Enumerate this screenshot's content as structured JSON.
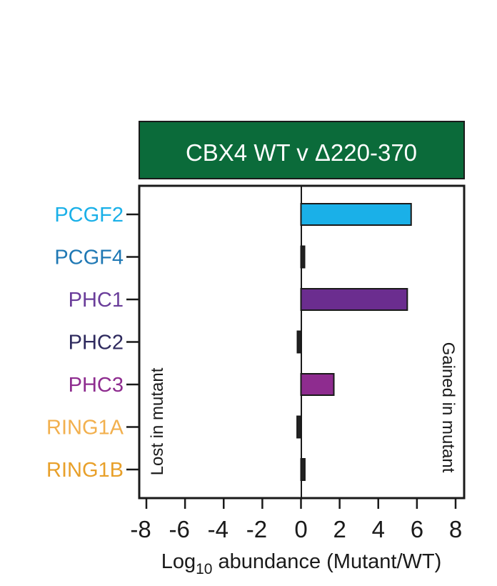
{
  "chart_data": {
    "type": "bar",
    "orientation": "horizontal",
    "title": "CBX4 WT v Δ220-370",
    "categories": [
      "PCGF2",
      "PCGF4",
      "PHC1",
      "PHC2",
      "PHC3",
      "RING1A",
      "RING1B"
    ],
    "category_colors": [
      "#1ab0e8",
      "#1f78b4",
      "#6a3d9a",
      "#2e2a5e",
      "#8e2c8f",
      "#f2b04e",
      "#e8a02a"
    ],
    "values": [
      5.7,
      0.05,
      5.5,
      -0.15,
      1.7,
      -0.2,
      0.2
    ],
    "bar_colors": [
      "#1ab0e8",
      "#222222",
      "#6b2d8f",
      "#222222",
      "#8e2c8f",
      "#222222",
      "#222222"
    ],
    "xlabel_main": "Log",
    "xlabel_sub": "10",
    "xlabel_rest": " abundance (Mutant/WT)",
    "xlim": [
      -8,
      8
    ],
    "xticks": [
      "-8",
      "-6",
      "-4",
      "-2",
      "0",
      "2",
      "4",
      "6",
      "8"
    ],
    "left_annotation": "Lost in mutant",
    "right_annotation": "Gained in mutant",
    "banner_color": "#0b6b3a",
    "grid": false
  }
}
